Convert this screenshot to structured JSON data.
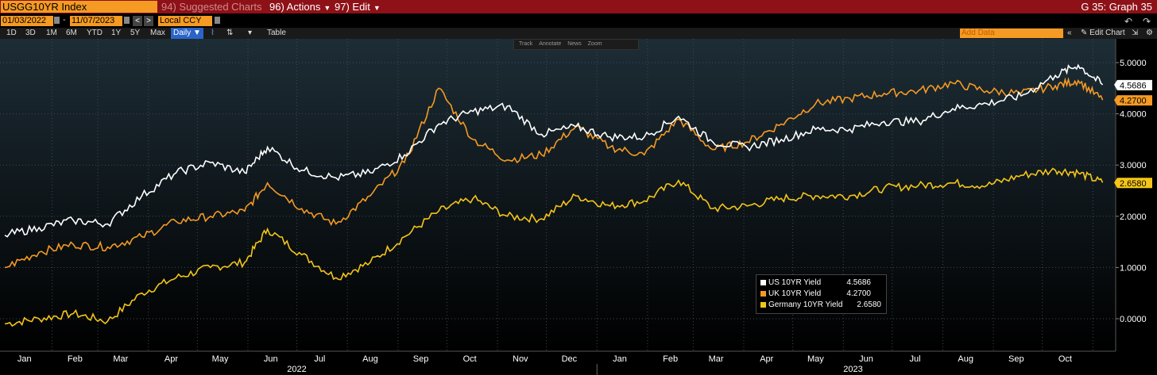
{
  "toolbar": {
    "ticker": "USGG10YR Index",
    "menu_suggested": "94) Suggested Charts",
    "menu_actions": "96) Actions",
    "menu_edit": "97) Edit",
    "graph_title": "G 35: Graph 35"
  },
  "controls": {
    "start_date": "01/03/2022",
    "end_date": "11/07/2023",
    "currency": "Local CCY",
    "periods": [
      "1D",
      "3D",
      "1M",
      "6M",
      "YTD",
      "1Y",
      "5Y",
      "Max"
    ],
    "frequency": "Daily ▼",
    "table_label": "Table",
    "add_data_placeholder": "Add Data",
    "edit_chart_label": "Edit Chart"
  },
  "mini_toolbar": [
    "Track",
    "Annotate",
    "News",
    "Zoom"
  ],
  "colors": {
    "us": "#ffffff",
    "uk": "#f59a23",
    "de": "#f5c518",
    "topbar": "#8e1118",
    "accent": "#f59a23"
  },
  "chart_data": {
    "type": "line",
    "x_label_months": [
      "Jan",
      "Feb",
      "Mar",
      "Apr",
      "May",
      "Jun",
      "Jul",
      "Aug",
      "Sep",
      "Oct",
      "Nov",
      "Dec",
      "Jan",
      "Feb",
      "Mar",
      "Apr",
      "May",
      "Jun",
      "Jul",
      "Aug",
      "Sep",
      "Oct"
    ],
    "x_label_years": [
      "2022",
      "2023"
    ],
    "y_ticks": [
      "5.0000",
      "4.0000",
      "3.0000",
      "2.0000",
      "1.0000",
      "0.0000"
    ],
    "ylim": [
      -0.5,
      5.5
    ],
    "x": [
      "2022-01-03",
      "2022-01-24",
      "2022-02-14",
      "2022-03-07",
      "2022-03-28",
      "2022-04-18",
      "2022-05-09",
      "2022-05-30",
      "2022-06-13",
      "2022-07-04",
      "2022-07-25",
      "2022-08-15",
      "2022-09-05",
      "2022-09-26",
      "2022-10-17",
      "2022-11-07",
      "2022-11-28",
      "2022-12-19",
      "2023-01-09",
      "2023-01-30",
      "2023-02-20",
      "2023-03-13",
      "2023-04-03",
      "2023-04-24",
      "2023-05-15",
      "2023-06-05",
      "2023-06-26",
      "2023-07-17",
      "2023-08-07",
      "2023-08-28",
      "2023-09-18",
      "2023-10-09",
      "2023-10-23",
      "2023-11-07"
    ],
    "series": [
      {
        "name": "US 10YR Yield",
        "color": "#ffffff",
        "last": "4.5686",
        "values": [
          1.63,
          1.78,
          1.92,
          1.85,
          2.4,
          2.85,
          3.05,
          2.85,
          3.35,
          2.9,
          2.75,
          2.85,
          3.2,
          3.8,
          4.05,
          4.15,
          3.6,
          3.75,
          3.55,
          3.55,
          3.95,
          3.45,
          3.35,
          3.5,
          3.7,
          3.7,
          3.85,
          3.85,
          4.1,
          4.2,
          4.35,
          4.75,
          4.95,
          4.5686
        ]
      },
      {
        "name": "UK 10YR Yield",
        "color": "#f59a23",
        "last": "4.2700",
        "values": [
          1.0,
          1.3,
          1.45,
          1.4,
          1.6,
          1.9,
          2.0,
          2.1,
          2.65,
          2.15,
          1.85,
          2.4,
          3.05,
          4.5,
          3.5,
          3.1,
          3.2,
          3.75,
          3.35,
          3.2,
          3.9,
          3.3,
          3.45,
          3.8,
          4.2,
          4.3,
          4.4,
          4.45,
          4.6,
          4.45,
          4.4,
          4.55,
          4.65,
          4.27
        ]
      },
      {
        "name": "Germany 10YR Yield",
        "color": "#f5c518",
        "last": "2.6580",
        "values": [
          -0.1,
          0.0,
          0.1,
          -0.05,
          0.5,
          0.8,
          1.0,
          1.1,
          1.75,
          1.25,
          0.8,
          1.1,
          1.6,
          2.1,
          2.35,
          2.0,
          1.95,
          2.4,
          2.2,
          2.3,
          2.7,
          2.15,
          2.2,
          2.35,
          2.4,
          2.4,
          2.55,
          2.6,
          2.65,
          2.6,
          2.8,
          2.9,
          2.85,
          2.658
        ]
      }
    ]
  }
}
